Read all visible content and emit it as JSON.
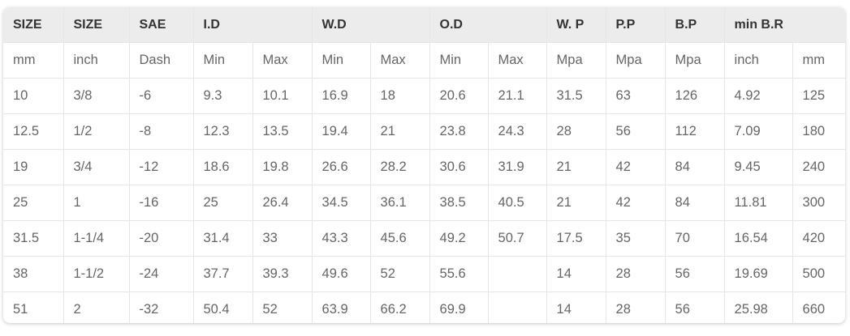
{
  "table": {
    "headers": [
      "SIZE",
      "SIZE",
      "SAE",
      "I.D",
      "W.D",
      "O.D",
      "W. P",
      "P.P",
      "B.P",
      "min B.R"
    ],
    "rows": [
      [
        "mm",
        "inch",
        "Dash",
        "Min",
        "Max",
        "Min",
        "Max",
        "Min",
        "Max",
        "Mpa",
        "Mpa",
        "Mpa",
        "inch",
        "mm"
      ],
      [
        "10",
        "3/8",
        "-6",
        "9.3",
        "10.1",
        "16.9",
        "18",
        "20.6",
        "21.1",
        "31.5",
        "63",
        "126",
        "4.92",
        "125"
      ],
      [
        "12.5",
        "1/2",
        "-8",
        "12.3",
        "13.5",
        "19.4",
        "21",
        "23.8",
        "24.3",
        "28",
        "56",
        "112",
        "7.09",
        "180"
      ],
      [
        "19",
        "3/4",
        "-12",
        "18.6",
        "19.8",
        "26.6",
        "28.2",
        "30.6",
        "31.9",
        "21",
        "42",
        "84",
        "9.45",
        "240"
      ],
      [
        "25",
        "1",
        "-16",
        "25",
        "26.4",
        "34.5",
        "36.1",
        "38.5",
        "40.5",
        "21",
        "42",
        "84",
        "11.81",
        "300"
      ],
      [
        "31.5",
        "1-1/4",
        "-20",
        "31.4",
        "33",
        "43.3",
        "45.6",
        "49.2",
        "50.7",
        "17.5",
        "35",
        "70",
        "16.54",
        "420"
      ],
      [
        "38",
        "1-1/2",
        "-24",
        "37.7",
        "39.3",
        "49.6",
        "52",
        "55.6",
        "",
        "14",
        "28",
        "56",
        "19.69",
        "500"
      ],
      [
        "51",
        "2",
        "-32",
        "50.4",
        "52",
        "63.9",
        "66.2",
        "69.9",
        "",
        "14",
        "28",
        "56",
        "25.98",
        "660"
      ]
    ]
  }
}
